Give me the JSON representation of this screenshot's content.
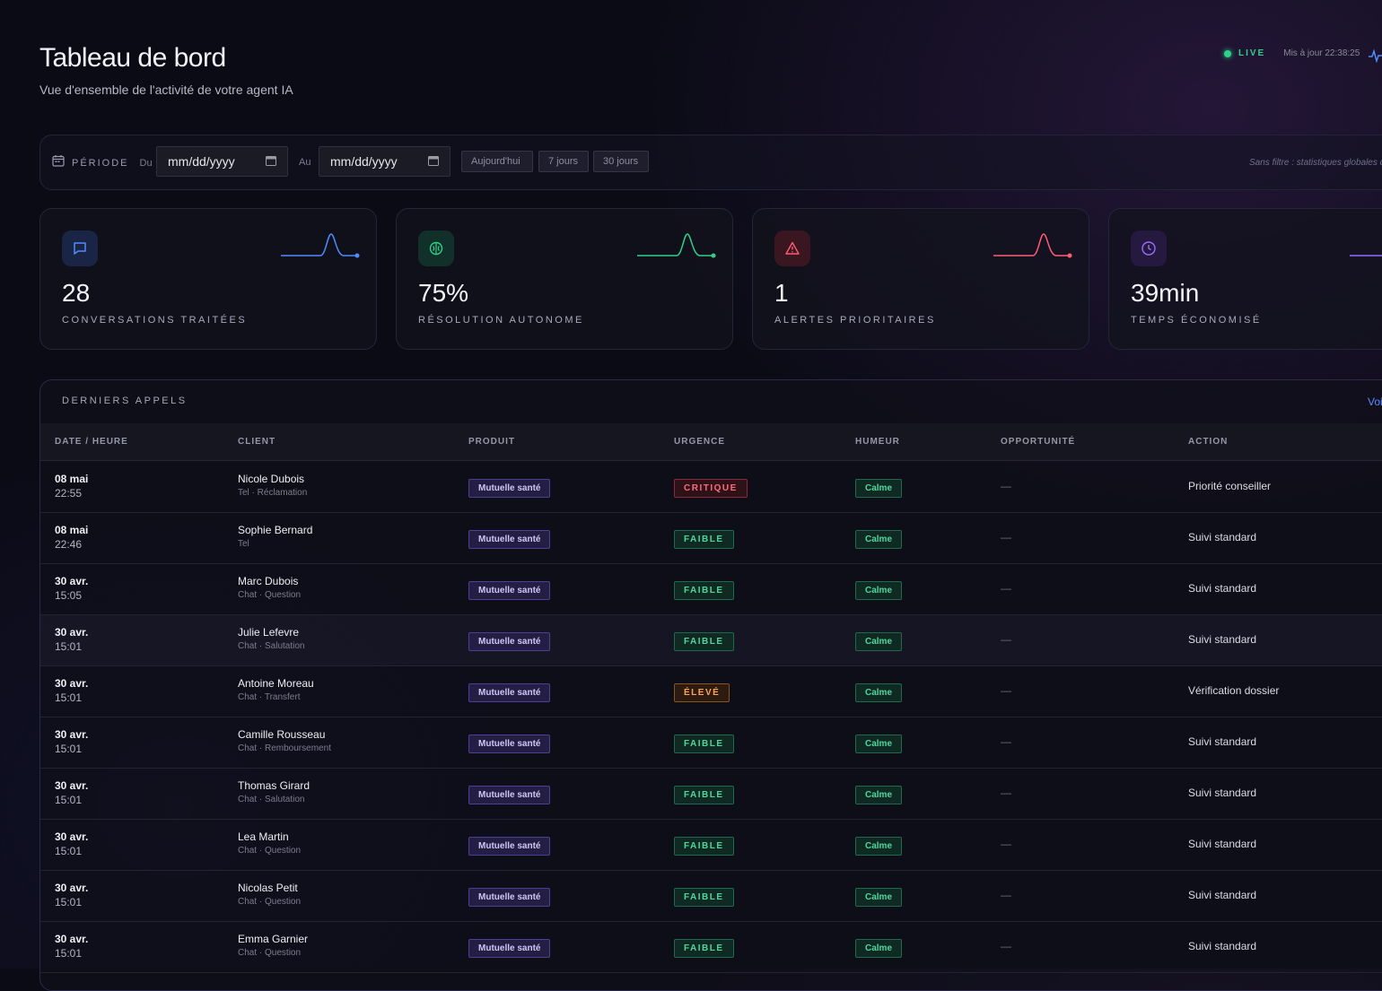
{
  "header": {
    "title": "Tableau de bord",
    "subtitle": "Vue d'ensemble de l'activité de votre agent IA",
    "live_label": "LIVE",
    "updated_label": "Mis à jour 22:38:25"
  },
  "filters": {
    "period_label": "PÉRIODE",
    "from_label": "Du",
    "to_label": "Au",
    "from_value": "mm/dd/yyyy",
    "to_value": "mm/dd/yyyy",
    "quick": [
      "Aujourd'hui",
      "7 jours",
      "30 jours"
    ],
    "note": "Sans filtre : statistiques globales d"
  },
  "kpis": [
    {
      "value": "28",
      "label": "CONVERSATIONS TRAITÉES",
      "icon": "chat-icon",
      "color": "#4f8cff"
    },
    {
      "value": "75%",
      "label": "RÉSOLUTION AUTONOME",
      "icon": "brain-icon",
      "color": "#2fd08a"
    },
    {
      "value": "1",
      "label": "ALERTES PRIORITAIRES",
      "icon": "alert-triangle-icon",
      "color": "#ff5c74"
    },
    {
      "value": "39min",
      "label": "TEMPS ÉCONOMISÉ",
      "icon": "clock-icon",
      "color": "#9a6cff"
    }
  ],
  "table": {
    "title": "DERNIERS APPELS",
    "link": "Voi",
    "columns": [
      "DATE / HEURE",
      "CLIENT",
      "PRODUIT",
      "URGENCE",
      "HUMEUR",
      "OPPORTUNITÉ",
      "ACTION"
    ],
    "rows": [
      {
        "date": "08 mai",
        "time": "22:55",
        "client": "Nicole Dubois",
        "sub": "Tel · Réclamation",
        "product": "Mutuelle santé",
        "urgency": "CRITIQUE",
        "urgency_level": "critique",
        "mood": "Calme",
        "opportunity": "—",
        "action": "Priorité conseiller"
      },
      {
        "date": "08 mai",
        "time": "22:46",
        "client": "Sophie Bernard",
        "sub": "Tel",
        "product": "Mutuelle santé",
        "urgency": "FAIBLE",
        "urgency_level": "faible",
        "mood": "Calme",
        "opportunity": "—",
        "action": "Suivi standard"
      },
      {
        "date": "30 avr.",
        "time": "15:05",
        "client": "Marc Dubois",
        "sub": "Chat · Question",
        "product": "Mutuelle santé",
        "urgency": "FAIBLE",
        "urgency_level": "faible",
        "mood": "Calme",
        "opportunity": "—",
        "action": "Suivi standard"
      },
      {
        "date": "30 avr.",
        "time": "15:01",
        "client": "Julie Lefevre",
        "sub": "Chat · Salutation",
        "product": "Mutuelle santé",
        "urgency": "FAIBLE",
        "urgency_level": "faible",
        "mood": "Calme",
        "opportunity": "—",
        "action": "Suivi standard"
      },
      {
        "date": "30 avr.",
        "time": "15:01",
        "client": "Antoine Moreau",
        "sub": "Chat · Transfert",
        "product": "Mutuelle santé",
        "urgency": "ÉLEVÉ",
        "urgency_level": "eleve",
        "mood": "Calme",
        "opportunity": "—",
        "action": "Vérification dossier"
      },
      {
        "date": "30 avr.",
        "time": "15:01",
        "client": "Camille Rousseau",
        "sub": "Chat · Remboursement",
        "product": "Mutuelle santé",
        "urgency": "FAIBLE",
        "urgency_level": "faible",
        "mood": "Calme",
        "opportunity": "—",
        "action": "Suivi standard"
      },
      {
        "date": "30 avr.",
        "time": "15:01",
        "client": "Thomas Girard",
        "sub": "Chat · Salutation",
        "product": "Mutuelle santé",
        "urgency": "FAIBLE",
        "urgency_level": "faible",
        "mood": "Calme",
        "opportunity": "—",
        "action": "Suivi standard"
      },
      {
        "date": "30 avr.",
        "time": "15:01",
        "client": "Lea Martin",
        "sub": "Chat · Question",
        "product": "Mutuelle santé",
        "urgency": "FAIBLE",
        "urgency_level": "faible",
        "mood": "Calme",
        "opportunity": "—",
        "action": "Suivi standard"
      },
      {
        "date": "30 avr.",
        "time": "15:01",
        "client": "Nicolas Petit",
        "sub": "Chat · Question",
        "product": "Mutuelle santé",
        "urgency": "FAIBLE",
        "urgency_level": "faible",
        "mood": "Calme",
        "opportunity": "—",
        "action": "Suivi standard"
      },
      {
        "date": "30 avr.",
        "time": "15:01",
        "client": "Emma Garnier",
        "sub": "Chat · Question",
        "product": "Mutuelle santé",
        "urgency": "FAIBLE",
        "urgency_level": "faible",
        "mood": "Calme",
        "opportunity": "—",
        "action": "Suivi standard"
      }
    ]
  }
}
